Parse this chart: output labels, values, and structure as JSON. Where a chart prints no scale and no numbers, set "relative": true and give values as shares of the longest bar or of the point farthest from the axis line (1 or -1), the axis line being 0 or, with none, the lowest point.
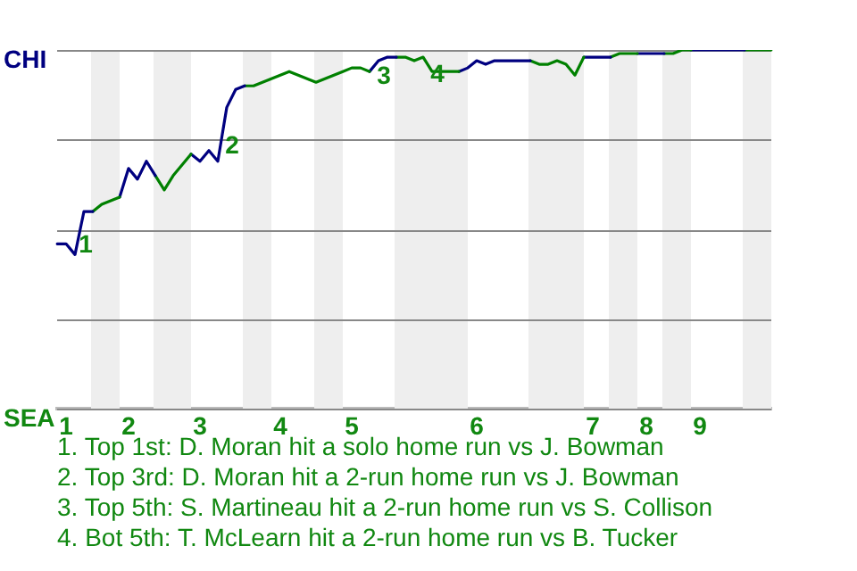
{
  "chart_data": {
    "type": "line",
    "relative": true,
    "categories": [
      null,
      "1",
      null,
      null,
      null,
      null,
      null,
      null,
      "2",
      null,
      null,
      null,
      null,
      null,
      null,
      null,
      "3",
      null,
      null,
      null,
      null,
      null,
      null,
      null,
      null,
      "4",
      null,
      null,
      null,
      null,
      null,
      null,
      null,
      "5",
      null,
      null,
      null,
      null,
      null,
      null,
      null,
      null,
      null,
      null,
      null,
      null,
      null,
      "6",
      null,
      null,
      null,
      null,
      null,
      null,
      null,
      null,
      null,
      null,
      null,
      null,
      "7",
      null,
      null,
      null,
      null,
      null,
      "8",
      null,
      null,
      null,
      null,
      null,
      "9",
      null,
      null,
      null,
      null,
      null,
      null,
      null,
      null
    ],
    "grid": "y",
    "legend": false,
    "marker": "none",
    "series": [
      {
        "color": "#000080",
        "values": [
          0.46,
          0.46,
          0.43,
          0.55,
          0.55,
          null,
          null,
          null,
          null,
          null,
          null,
          null,
          null,
          null,
          null,
          null,
          null,
          null,
          null,
          null,
          null,
          null,
          null,
          null,
          null,
          null,
          null,
          null,
          null,
          null,
          null,
          null,
          null,
          null,
          null,
          null,
          null,
          null,
          null,
          null,
          null,
          null,
          null,
          null,
          null,
          null,
          null,
          null,
          null,
          null,
          null,
          null,
          null,
          null,
          null,
          null,
          null,
          null,
          null,
          null,
          null,
          null,
          null,
          null,
          null,
          null,
          null,
          null,
          null,
          null,
          null,
          null,
          null,
          null,
          null,
          null,
          null,
          null,
          null,
          null,
          null
        ]
      },
      {
        "color": "#008000",
        "values": [
          null,
          null,
          null,
          null,
          0.55,
          0.57,
          0.58,
          0.59,
          null,
          null,
          null,
          null,
          null,
          null,
          null,
          null,
          null,
          null,
          null,
          null,
          null,
          null,
          null,
          null,
          null,
          null,
          null,
          null,
          null,
          null,
          null,
          null,
          null,
          null,
          null,
          null,
          null,
          null,
          null,
          null,
          null,
          null,
          null,
          null,
          null,
          null,
          null,
          null,
          null,
          null,
          null,
          null,
          null,
          null,
          null,
          null,
          null,
          null,
          null,
          null,
          null,
          null,
          null,
          null,
          null,
          null,
          null,
          null,
          null,
          null,
          null,
          null,
          null,
          null,
          null,
          null,
          null,
          null,
          null,
          null,
          null
        ]
      },
      {
        "color": "#000080",
        "values": [
          null,
          null,
          null,
          null,
          null,
          null,
          null,
          0.59,
          0.67,
          0.64,
          0.69,
          0.65,
          null,
          null,
          null,
          null,
          null,
          null,
          null,
          null,
          null,
          null,
          null,
          null,
          null,
          null,
          null,
          null,
          null,
          null,
          null,
          null,
          null,
          null,
          null,
          null,
          null,
          null,
          null,
          null,
          null,
          null,
          null,
          null,
          null,
          null,
          null,
          null,
          null,
          null,
          null,
          null,
          null,
          null,
          null,
          null,
          null,
          null,
          null,
          null,
          null,
          null,
          null,
          null,
          null,
          null,
          null,
          null,
          null,
          null,
          null,
          null,
          null,
          null,
          null,
          null,
          null,
          null,
          null,
          null,
          null
        ]
      },
      {
        "color": "#008000",
        "values": [
          null,
          null,
          null,
          null,
          null,
          null,
          null,
          null,
          null,
          null,
          null,
          0.65,
          0.61,
          0.65,
          0.68,
          0.71,
          null,
          null,
          null,
          null,
          null,
          null,
          null,
          null,
          null,
          null,
          null,
          null,
          null,
          null,
          null,
          null,
          null,
          null,
          null,
          null,
          null,
          null,
          null,
          null,
          null,
          null,
          null,
          null,
          null,
          null,
          null,
          null,
          null,
          null,
          null,
          null,
          null,
          null,
          null,
          null,
          null,
          null,
          null,
          null,
          null,
          null,
          null,
          null,
          null,
          null,
          null,
          null,
          null,
          null,
          null,
          null,
          null,
          null,
          null,
          null,
          null,
          null,
          null,
          null,
          null
        ]
      },
      {
        "color": "#000080",
        "values": [
          null,
          null,
          null,
          null,
          null,
          null,
          null,
          null,
          null,
          null,
          null,
          null,
          null,
          null,
          null,
          0.71,
          0.69,
          0.72,
          0.69,
          0.84,
          0.89,
          0.9,
          null,
          null,
          null,
          null,
          null,
          null,
          null,
          null,
          null,
          null,
          null,
          null,
          null,
          null,
          null,
          null,
          null,
          null,
          null,
          null,
          null,
          null,
          null,
          null,
          null,
          null,
          null,
          null,
          null,
          null,
          null,
          null,
          null,
          null,
          null,
          null,
          null,
          null,
          null,
          null,
          null,
          null,
          null,
          null,
          null,
          null,
          null,
          null,
          null,
          null,
          null,
          null,
          null,
          null,
          null,
          null,
          null,
          null,
          null
        ]
      },
      {
        "color": "#008000",
        "values": [
          null,
          null,
          null,
          null,
          null,
          null,
          null,
          null,
          null,
          null,
          null,
          null,
          null,
          null,
          null,
          null,
          null,
          null,
          null,
          null,
          null,
          0.9,
          0.9,
          0.91,
          0.92,
          0.93,
          0.94,
          0.93,
          0.92,
          0.91,
          0.92,
          0.93,
          0.94,
          0.95,
          0.95,
          0.94,
          null,
          null,
          null,
          null,
          null,
          null,
          null,
          null,
          null,
          null,
          null,
          null,
          null,
          null,
          null,
          null,
          null,
          null,
          null,
          null,
          null,
          null,
          null,
          null,
          null,
          null,
          null,
          null,
          null,
          null,
          null,
          null,
          null,
          null,
          null,
          null,
          null,
          null,
          null,
          null,
          null,
          null,
          null,
          null,
          null
        ]
      },
      {
        "color": "#000080",
        "values": [
          null,
          null,
          null,
          null,
          null,
          null,
          null,
          null,
          null,
          null,
          null,
          null,
          null,
          null,
          null,
          null,
          null,
          null,
          null,
          null,
          null,
          null,
          null,
          null,
          null,
          null,
          null,
          null,
          null,
          null,
          null,
          null,
          null,
          null,
          null,
          0.94,
          0.97,
          0.98,
          0.98,
          null,
          null,
          null,
          null,
          null,
          null,
          null,
          null,
          null,
          null,
          null,
          null,
          null,
          null,
          null,
          null,
          null,
          null,
          null,
          null,
          null,
          null,
          null,
          null,
          null,
          null,
          null,
          null,
          null,
          null,
          null,
          null,
          null,
          null,
          null,
          null,
          null,
          null,
          null,
          null,
          null,
          null
        ]
      },
      {
        "color": "#008000",
        "values": [
          null,
          null,
          null,
          null,
          null,
          null,
          null,
          null,
          null,
          null,
          null,
          null,
          null,
          null,
          null,
          null,
          null,
          null,
          null,
          null,
          null,
          null,
          null,
          null,
          null,
          null,
          null,
          null,
          null,
          null,
          null,
          null,
          null,
          null,
          null,
          null,
          null,
          null,
          0.98,
          0.98,
          0.97,
          0.98,
          0.94,
          0.94,
          0.94,
          0.94,
          null,
          null,
          null,
          null,
          null,
          null,
          null,
          null,
          null,
          null,
          null,
          null,
          null,
          null,
          null,
          null,
          null,
          null,
          null,
          null,
          null,
          null,
          null,
          null,
          null,
          null,
          null,
          null,
          null,
          null,
          null,
          null,
          null,
          null,
          null
        ]
      },
      {
        "color": "#000080",
        "values": [
          null,
          null,
          null,
          null,
          null,
          null,
          null,
          null,
          null,
          null,
          null,
          null,
          null,
          null,
          null,
          null,
          null,
          null,
          null,
          null,
          null,
          null,
          null,
          null,
          null,
          null,
          null,
          null,
          null,
          null,
          null,
          null,
          null,
          null,
          null,
          null,
          null,
          null,
          null,
          null,
          null,
          null,
          null,
          null,
          null,
          0.94,
          0.95,
          0.97,
          0.96,
          0.97,
          0.97,
          0.97,
          0.97,
          0.97,
          null,
          null,
          null,
          null,
          null,
          null,
          null,
          null,
          null,
          null,
          null,
          null,
          null,
          null,
          null,
          null,
          null,
          null,
          null,
          null,
          null,
          null,
          null,
          null,
          null,
          null,
          null
        ]
      },
      {
        "color": "#008000",
        "values": [
          null,
          null,
          null,
          null,
          null,
          null,
          null,
          null,
          null,
          null,
          null,
          null,
          null,
          null,
          null,
          null,
          null,
          null,
          null,
          null,
          null,
          null,
          null,
          null,
          null,
          null,
          null,
          null,
          null,
          null,
          null,
          null,
          null,
          null,
          null,
          null,
          null,
          null,
          null,
          null,
          null,
          null,
          null,
          null,
          null,
          null,
          null,
          null,
          null,
          null,
          null,
          null,
          null,
          0.97,
          0.96,
          0.96,
          0.97,
          0.96,
          0.93,
          0.98,
          null,
          null,
          null,
          null,
          null,
          null,
          null,
          null,
          null,
          null,
          null,
          null,
          null,
          null,
          null,
          null,
          null,
          null,
          null,
          null,
          null
        ]
      },
      {
        "color": "#000080",
        "values": [
          null,
          null,
          null,
          null,
          null,
          null,
          null,
          null,
          null,
          null,
          null,
          null,
          null,
          null,
          null,
          null,
          null,
          null,
          null,
          null,
          null,
          null,
          null,
          null,
          null,
          null,
          null,
          null,
          null,
          null,
          null,
          null,
          null,
          null,
          null,
          null,
          null,
          null,
          null,
          null,
          null,
          null,
          null,
          null,
          null,
          null,
          null,
          null,
          null,
          null,
          null,
          null,
          null,
          null,
          null,
          null,
          null,
          null,
          null,
          0.98,
          0.98,
          0.98,
          0.98,
          null,
          null,
          null,
          null,
          null,
          null,
          null,
          null,
          null,
          null,
          null,
          null,
          null,
          null,
          null,
          null,
          null,
          null
        ]
      },
      {
        "color": "#008000",
        "values": [
          null,
          null,
          null,
          null,
          null,
          null,
          null,
          null,
          null,
          null,
          null,
          null,
          null,
          null,
          null,
          null,
          null,
          null,
          null,
          null,
          null,
          null,
          null,
          null,
          null,
          null,
          null,
          null,
          null,
          null,
          null,
          null,
          null,
          null,
          null,
          null,
          null,
          null,
          null,
          null,
          null,
          null,
          null,
          null,
          null,
          null,
          null,
          null,
          null,
          null,
          null,
          null,
          null,
          null,
          null,
          null,
          null,
          null,
          null,
          null,
          null,
          null,
          0.98,
          0.99,
          0.99,
          0.99,
          null,
          null,
          null,
          null,
          null,
          null,
          null,
          null,
          null,
          null,
          null,
          null,
          null,
          null,
          null
        ]
      },
      {
        "color": "#000080",
        "values": [
          null,
          null,
          null,
          null,
          null,
          null,
          null,
          null,
          null,
          null,
          null,
          null,
          null,
          null,
          null,
          null,
          null,
          null,
          null,
          null,
          null,
          null,
          null,
          null,
          null,
          null,
          null,
          null,
          null,
          null,
          null,
          null,
          null,
          null,
          null,
          null,
          null,
          null,
          null,
          null,
          null,
          null,
          null,
          null,
          null,
          null,
          null,
          null,
          null,
          null,
          null,
          null,
          null,
          null,
          null,
          null,
          null,
          null,
          null,
          null,
          null,
          null,
          null,
          null,
          null,
          0.99,
          0.99,
          0.99,
          0.99,
          null,
          null,
          null,
          null,
          null,
          null,
          null,
          null,
          null,
          null,
          null,
          null
        ]
      },
      {
        "color": "#008000",
        "values": [
          null,
          null,
          null,
          null,
          null,
          null,
          null,
          null,
          null,
          null,
          null,
          null,
          null,
          null,
          null,
          null,
          null,
          null,
          null,
          null,
          null,
          null,
          null,
          null,
          null,
          null,
          null,
          null,
          null,
          null,
          null,
          null,
          null,
          null,
          null,
          null,
          null,
          null,
          null,
          null,
          null,
          null,
          null,
          null,
          null,
          null,
          null,
          null,
          null,
          null,
          null,
          null,
          null,
          null,
          null,
          null,
          null,
          null,
          null,
          null,
          null,
          null,
          null,
          null,
          null,
          null,
          null,
          null,
          0.99,
          0.99,
          1,
          1,
          null,
          null,
          null,
          null,
          null,
          null,
          null,
          null,
          null
        ]
      },
      {
        "color": "#000080",
        "values": [
          null,
          null,
          null,
          null,
          null,
          null,
          null,
          null,
          null,
          null,
          null,
          null,
          null,
          null,
          null,
          null,
          null,
          null,
          null,
          null,
          null,
          null,
          null,
          null,
          null,
          null,
          null,
          null,
          null,
          null,
          null,
          null,
          null,
          null,
          null,
          null,
          null,
          null,
          null,
          null,
          null,
          null,
          null,
          null,
          null,
          null,
          null,
          null,
          null,
          null,
          null,
          null,
          null,
          null,
          null,
          null,
          null,
          null,
          null,
          null,
          null,
          null,
          null,
          null,
          null,
          null,
          null,
          null,
          null,
          null,
          null,
          1,
          1,
          1,
          1,
          1,
          1,
          1,
          null,
          null,
          null
        ]
      },
      {
        "color": "#008000",
        "values": [
          null,
          null,
          null,
          null,
          null,
          null,
          null,
          null,
          null,
          null,
          null,
          null,
          null,
          null,
          null,
          null,
          null,
          null,
          null,
          null,
          null,
          null,
          null,
          null,
          null,
          null,
          null,
          null,
          null,
          null,
          null,
          null,
          null,
          null,
          null,
          null,
          null,
          null,
          null,
          null,
          null,
          null,
          null,
          null,
          null,
          null,
          null,
          null,
          null,
          null,
          null,
          null,
          null,
          null,
          null,
          null,
          null,
          null,
          null,
          null,
          null,
          null,
          null,
          null,
          null,
          null,
          null,
          null,
          null,
          null,
          null,
          null,
          null,
          null,
          null,
          null,
          null,
          1,
          1,
          1,
          1
        ]
      }
    ],
    "annotations": [
      "CHI",
      "SEA",
      "1",
      "2",
      "3",
      "4",
      "1. Top 1st: D. Moran hit a solo home run vs J. Bowman",
      "2. Top 3rd: D. Moran hit a 2-run home run vs J. Bowman",
      "3. Top 5th: S. Martineau hit a 2-run home run vs S. Collison",
      "4. Bot 5th: T. McLearn hit a 2-run home run vs B. Tucker"
    ]
  }
}
